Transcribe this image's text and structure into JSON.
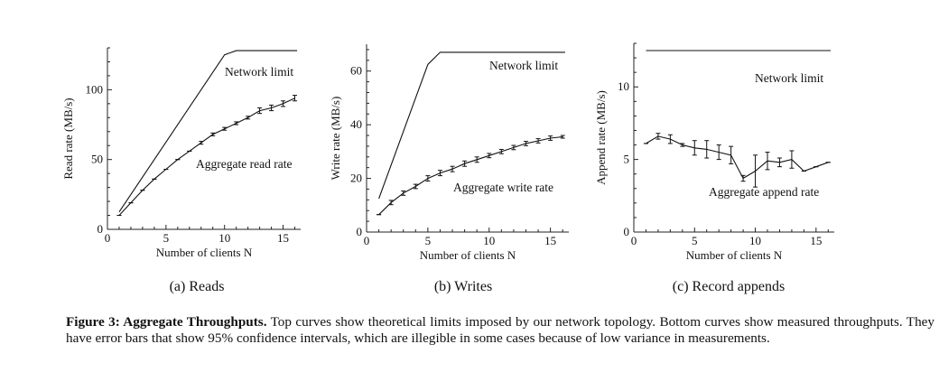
{
  "caption": {
    "label": "Figure 3: Aggregate Throughputs.",
    "text": "Top curves show theoretical limits imposed by our network topology. Bottom curves show measured throughputs. They have error bars that show 95% confidence intervals, which are illegible in some cases because of low variance in measurements."
  },
  "chart_data": [
    {
      "type": "line",
      "sub_caption": "(a) Reads",
      "xlabel": "Number of clients N",
      "ylabel": "Read rate (MB/s)",
      "xlim": [
        0,
        16.5
      ],
      "ylim": [
        0,
        130
      ],
      "xticks": [
        0,
        5,
        10,
        15
      ],
      "yticks": [
        0,
        50,
        100
      ],
      "series": [
        {
          "name": "Network limit",
          "x": [
            1,
            10,
            11,
            16.2
          ],
          "y": [
            12.5,
            125,
            128,
            128
          ]
        },
        {
          "name": "Aggregate read rate",
          "x": [
            1,
            2,
            3,
            4,
            5,
            6,
            7,
            8,
            9,
            10,
            11,
            12,
            13,
            14,
            15,
            16
          ],
          "y": [
            10,
            19,
            28,
            36,
            43,
            50,
            56,
            62,
            68,
            72,
            76,
            80,
            85,
            87,
            90,
            94
          ],
          "err": [
            0,
            0,
            0,
            0,
            0,
            0,
            0,
            1,
            1,
            1,
            1,
            1,
            2,
            2,
            2,
            2
          ]
        }
      ],
      "annotations": [
        "Network limit",
        "Aggregate read rate"
      ]
    },
    {
      "type": "line",
      "sub_caption": "(b) Writes",
      "xlabel": "Number of clients N",
      "ylabel": "Write rate (MB/s)",
      "xlim": [
        0,
        16.5
      ],
      "ylim": [
        0,
        70
      ],
      "xticks": [
        0,
        5,
        10,
        15
      ],
      "yticks": [
        0,
        20,
        40,
        60
      ],
      "series": [
        {
          "name": "Network limit",
          "x": [
            1,
            5,
            6,
            16.2
          ],
          "y": [
            12.5,
            62.5,
            67,
            67
          ]
        },
        {
          "name": "Aggregate write rate",
          "x": [
            1,
            2,
            3,
            4,
            5,
            6,
            7,
            8,
            9,
            10,
            11,
            12,
            13,
            14,
            15,
            16
          ],
          "y": [
            6.5,
            11,
            14.5,
            17,
            20,
            22,
            23.5,
            25.5,
            27,
            28.5,
            30,
            31.5,
            33,
            34,
            35,
            35.5
          ],
          "err": [
            0,
            0.8,
            0.8,
            0.8,
            1,
            1,
            1,
            1,
            1,
            0.8,
            0.8,
            0.8,
            0.8,
            0.8,
            0.8,
            0.5
          ]
        }
      ],
      "annotations": [
        "Network limit",
        "Aggregate write rate"
      ]
    },
    {
      "type": "line",
      "sub_caption": "(c) Record appends",
      "xlabel": "Number of clients N",
      "ylabel": "Append rate (MB/s)",
      "xlim": [
        0,
        16.5
      ],
      "ylim": [
        0,
        13
      ],
      "xticks": [
        0,
        5,
        10,
        15
      ],
      "yticks": [
        0,
        5,
        10
      ],
      "series": [
        {
          "name": "Network limit",
          "x": [
            1,
            16.2
          ],
          "y": [
            12.5,
            12.5
          ]
        },
        {
          "name": "Aggregate append rate",
          "x": [
            1,
            2,
            3,
            4,
            5,
            6,
            7,
            8,
            9,
            10,
            11,
            12,
            13,
            14,
            15,
            16
          ],
          "y": [
            6.1,
            6.6,
            6.4,
            6.0,
            5.8,
            5.7,
            5.5,
            5.3,
            3.7,
            4.2,
            4.9,
            4.8,
            5.0,
            4.2,
            4.5,
            4.8
          ],
          "err": [
            0,
            0.2,
            0.3,
            0.1,
            0.5,
            0.6,
            0.5,
            0.6,
            0.2,
            1.1,
            0.6,
            0.3,
            0.6,
            0,
            0,
            0
          ]
        }
      ],
      "annotations": [
        "Network limit",
        "Aggregate append rate"
      ]
    }
  ]
}
